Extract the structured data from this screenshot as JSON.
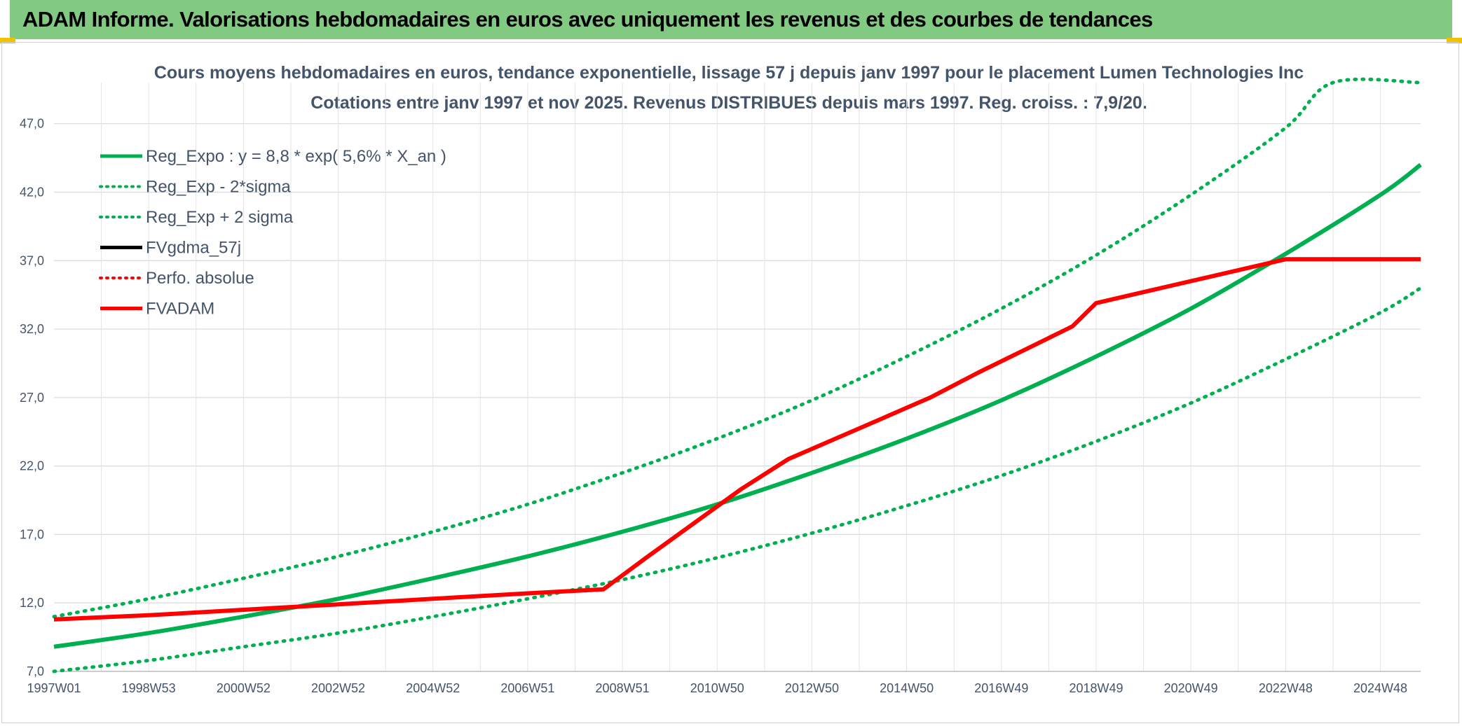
{
  "header": {
    "title": "ADAM Informe. Valorisations hebdomadaires en euros avec uniquement les revenus et des courbes de tendances"
  },
  "chart_data": {
    "type": "line",
    "title": "Cours moyens hebdomadaires en euros, tendance exponentielle, lissage 57 j depuis janv 1997 pour le placement Lumen Technologies Inc",
    "subtitle": "Cotations entre janv 1997 et nov 2025. Revenus DISTRIBUES depuis mars 1997. Reg. croiss. : 7,9/20.",
    "xlabel": "",
    "ylabel": "",
    "ylim": [
      7.0,
      50.0
    ],
    "xlim": [
      1997.0,
      2025.85
    ],
    "yticks": [
      "7,0",
      "12,0",
      "17,0",
      "22,0",
      "27,0",
      "32,0",
      "37,0",
      "42,0",
      "47,0"
    ],
    "xticks": [
      {
        "label": "1997W01",
        "x": 1997.0
      },
      {
        "label": "1998W53",
        "x": 1999.0
      },
      {
        "label": "2000W52",
        "x": 2001.0
      },
      {
        "label": "2002W52",
        "x": 2003.0
      },
      {
        "label": "2004W52",
        "x": 2005.0
      },
      {
        "label": "2006W51",
        "x": 2007.0
      },
      {
        "label": "2008W51",
        "x": 2009.0
      },
      {
        "label": "2010W50",
        "x": 2011.0
      },
      {
        "label": "2012W50",
        "x": 2013.0
      },
      {
        "label": "2014W50",
        "x": 2015.0
      },
      {
        "label": "2016W49",
        "x": 2017.0
      },
      {
        "label": "2018W49",
        "x": 2019.0
      },
      {
        "label": "2020W49",
        "x": 2021.0
      },
      {
        "label": "2022W48",
        "x": 2023.0
      },
      {
        "label": "2024W48",
        "x": 2025.0
      }
    ],
    "grid": true,
    "legend_position": "top-left",
    "series": [
      {
        "name": "Reg_Expo : y = 8,8 * exp( 5,6% *  X_an )",
        "color": "#00b050",
        "style": "solid",
        "x": [
          1997.0,
          1999.0,
          2001.0,
          2003.0,
          2005.0,
          2007.0,
          2009.0,
          2011.0,
          2013.0,
          2015.0,
          2017.0,
          2019.0,
          2021.0,
          2023.0,
          2025.0,
          2025.85
        ],
        "y": [
          8.8,
          9.8,
          11.0,
          12.3,
          13.8,
          15.4,
          17.2,
          19.2,
          21.5,
          24.0,
          26.8,
          30.0,
          33.5,
          37.5,
          41.8,
          44.0
        ]
      },
      {
        "name": "Reg_Exp - 2*sigma",
        "color": "#00b050",
        "style": "dotted",
        "x": [
          1997.0,
          1999.0,
          2001.0,
          2003.0,
          2005.0,
          2007.0,
          2009.0,
          2011.0,
          2013.0,
          2015.0,
          2017.0,
          2019.0,
          2021.0,
          2023.0,
          2025.0,
          2025.85
        ],
        "y": [
          7.0,
          7.8,
          8.8,
          9.8,
          11.0,
          12.3,
          13.7,
          15.3,
          17.1,
          19.1,
          21.3,
          23.8,
          26.6,
          29.8,
          33.2,
          35.0
        ]
      },
      {
        "name": "Reg_Exp + 2 sigma",
        "color": "#00b050",
        "style": "dotted",
        "x": [
          1997.0,
          1999.0,
          2001.0,
          2003.0,
          2005.0,
          2007.0,
          2009.0,
          2011.0,
          2013.0,
          2015.0,
          2017.0,
          2019.0,
          2021.0,
          2023.0,
          2024.0,
          2025.85
        ],
        "y": [
          11.0,
          12.3,
          13.8,
          15.4,
          17.2,
          19.2,
          21.5,
          24.0,
          26.8,
          30.0,
          33.5,
          37.4,
          41.8,
          46.7,
          50.0,
          50.0
        ]
      },
      {
        "name": "FVgdma_57j",
        "color": "#000000",
        "style": "solid",
        "x": [],
        "y": []
      },
      {
        "name": "Perfo. absolue",
        "color": "#ff0000",
        "style": "dotted",
        "x": [],
        "y": []
      },
      {
        "name": "FVADAM",
        "color": "#ff0000",
        "style": "solid",
        "x": [
          1997.0,
          1999.0,
          2001.0,
          2003.0,
          2005.0,
          2007.0,
          2008.6,
          2009.5,
          2010.5,
          2011.5,
          2012.5,
          2013.5,
          2014.5,
          2015.5,
          2016.5,
          2017.5,
          2018.5,
          2019.0,
          2020.0,
          2021.0,
          2022.0,
          2023.0,
          2024.0,
          2025.85
        ],
        "y": [
          10.8,
          11.1,
          11.5,
          11.9,
          12.3,
          12.7,
          13.0,
          15.3,
          17.8,
          20.3,
          22.5,
          24.0,
          25.5,
          27.0,
          28.8,
          30.5,
          32.2,
          33.9,
          34.7,
          35.5,
          36.3,
          37.1,
          37.1,
          37.1
        ]
      }
    ]
  }
}
